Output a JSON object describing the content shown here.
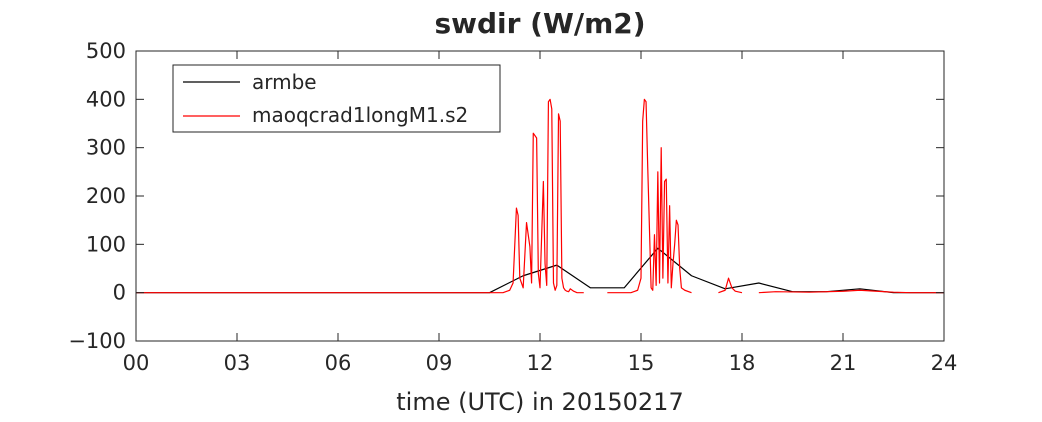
{
  "chart_data": {
    "type": "line",
    "title": "swdir  (W/m2)",
    "xlabel": "time (UTC) in 20150217",
    "ylabel": "",
    "xlim": [
      0,
      24
    ],
    "ylim": [
      -100,
      500
    ],
    "xticks": [
      0,
      3,
      6,
      9,
      12,
      15,
      18,
      21,
      24
    ],
    "xtick_labels": [
      "00",
      "03",
      "06",
      "09",
      "12",
      "15",
      "18",
      "21",
      "24"
    ],
    "yticks": [
      -100,
      0,
      100,
      200,
      300,
      400,
      500
    ],
    "ytick_labels": [
      "−100",
      "0",
      "100",
      "200",
      "300",
      "400",
      "500"
    ],
    "grid": false,
    "legend_position": "top-left",
    "series": [
      {
        "name": "armbe",
        "color": "#000000",
        "x": [
          0,
          10.5,
          11.5,
          12.5,
          13.5,
          14.5,
          15.5,
          16.5,
          17.5,
          18.5,
          19.5,
          20.5,
          21.5,
          22.5,
          24
        ],
        "y": [
          0,
          0,
          35,
          57,
          10,
          10,
          92,
          35,
          8,
          20,
          2,
          2,
          8,
          0,
          0
        ]
      },
      {
        "name": "maoqcrad1longM1.s2",
        "color": "#ff0000",
        "segments": [
          {
            "x": [
              0,
              10.5,
              10.9,
              11.1,
              11.2,
              11.3,
              11.35,
              11.4,
              11.5,
              11.6,
              11.7,
              11.75,
              11.8,
              11.9,
              11.95,
              12.0,
              12.1,
              12.15,
              12.2,
              12.25,
              12.3,
              12.35,
              12.4,
              12.45,
              12.5,
              12.55,
              12.6,
              12.65,
              12.7,
              12.75,
              12.8,
              12.85,
              12.9,
              13.0,
              13.1,
              13.3
            ],
            "y": [
              0,
              0,
              0,
              5,
              20,
              175,
              160,
              30,
              10,
              145,
              95,
              20,
              330,
              320,
              40,
              10,
              230,
              60,
              15,
              395,
              400,
              380,
              20,
              5,
              15,
              370,
              355,
              30,
              10,
              5,
              3,
              2,
              8,
              3,
              0,
              0
            ]
          },
          {
            "x": [
              14.0,
              14.7,
              14.9,
              15.0,
              15.05,
              15.1,
              15.15,
              15.2,
              15.3,
              15.35,
              15.4,
              15.45,
              15.5,
              15.55,
              15.6,
              15.65,
              15.7,
              15.75,
              15.8,
              15.85,
              15.9,
              15.95,
              16.0,
              16.05,
              16.1,
              16.15,
              16.2,
              16.3,
              16.5
            ],
            "y": [
              0,
              0,
              5,
              30,
              355,
              400,
              395,
              260,
              10,
              5,
              120,
              15,
              250,
              20,
              300,
              30,
              230,
              235,
              20,
              180,
              10,
              60,
              100,
              150,
              140,
              50,
              10,
              5,
              0
            ]
          },
          {
            "x": [
              17.3,
              17.5,
              17.6,
              17.7,
              17.8,
              18.0
            ],
            "y": [
              0,
              5,
              30,
              10,
              3,
              0
            ]
          },
          {
            "x": [
              18.5,
              19.0,
              20.0,
              21.0,
              21.5,
              22.0,
              22.5,
              23.0,
              24.0
            ],
            "y": [
              0,
              2,
              1,
              3,
              5,
              3,
              1,
              0,
              0
            ]
          }
        ]
      }
    ]
  }
}
